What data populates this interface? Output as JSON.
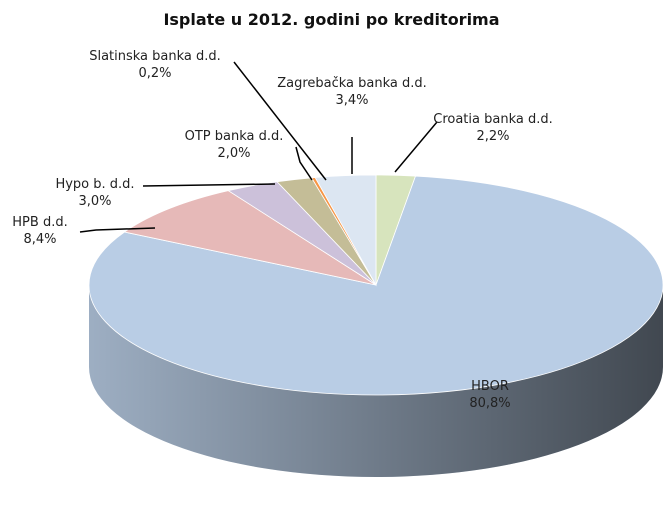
{
  "chart_data": {
    "type": "pie3d",
    "title": "Isplate u 2012. godini po kreditorima",
    "categories": [
      "Croatia banka d.d.",
      "HBOR",
      "HPB d.d.",
      "Hypo b. d.d.",
      "OTP banka d.d.",
      "Slatinska banka d.d.",
      "Zagrebačka banka d.d."
    ],
    "values": [
      2.2,
      80.8,
      8.4,
      3.0,
      2.0,
      0.2,
      3.4
    ],
    "value_labels": [
      "2,2%",
      "80,8%",
      "8,4%",
      "3,0%",
      "2,0%",
      "0,2%",
      "3,4%"
    ],
    "colors": [
      "#d7e4bd",
      "#b9cde5",
      "#e6b9b8",
      "#ccc1da",
      "#c4bd97",
      "#f79646",
      "#dce6f2"
    ]
  }
}
